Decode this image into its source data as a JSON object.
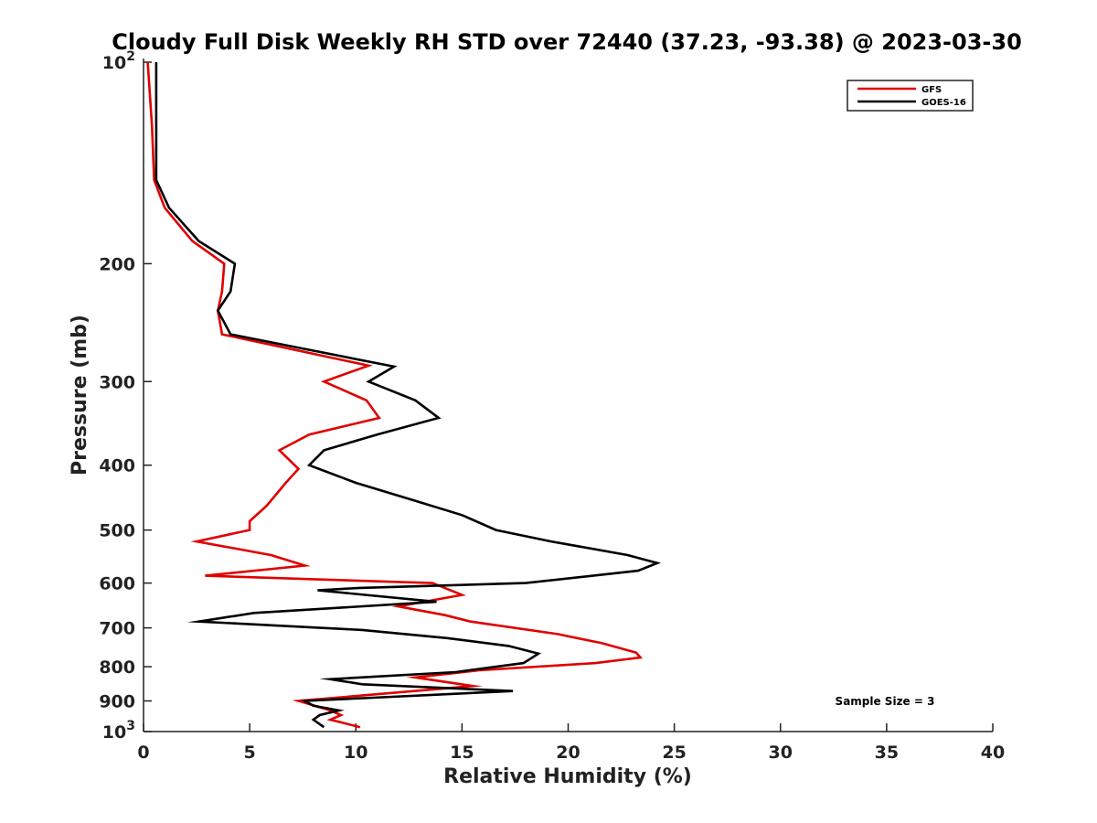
{
  "chart_data": {
    "type": "line",
    "title": "Cloudy Full Disk Weekly RH STD over 72440 (37.23, -93.38) @ 2023-03-30",
    "xlabel": "Relative Humidity (%)",
    "ylabel": "Pressure (mb)",
    "xlim": [
      0,
      40
    ],
    "ylim": [
      100,
      1000
    ],
    "y_scale": "log",
    "y_reversed": true,
    "grid": false,
    "legend_position": "top-right",
    "x_ticks": [
      0,
      5,
      10,
      15,
      20,
      25,
      30,
      35,
      40
    ],
    "x_tick_labels": [
      "0",
      "5",
      "10",
      "15",
      "20",
      "25",
      "30",
      "35",
      "40"
    ],
    "y_ticks": [
      100,
      200,
      300,
      400,
      500,
      600,
      700,
      800,
      900,
      1000
    ],
    "y_tick_labels": [
      {
        "base": "10",
        "exp": "2"
      },
      {
        "base": "200",
        "exp": ""
      },
      {
        "base": "300",
        "exp": ""
      },
      {
        "base": "400",
        "exp": ""
      },
      {
        "base": "500",
        "exp": ""
      },
      {
        "base": "600",
        "exp": ""
      },
      {
        "base": "700",
        "exp": ""
      },
      {
        "base": "800",
        "exp": ""
      },
      {
        "base": "900",
        "exp": ""
      },
      {
        "base": "10",
        "exp": "3"
      }
    ],
    "annotation": "Sample Size = 3",
    "series": [
      {
        "name": "GFS",
        "color": "#e00000",
        "points": [
          [
            0.2,
            100
          ],
          [
            0.4,
            125
          ],
          [
            0.5,
            150
          ],
          [
            1.0,
            165
          ],
          [
            2.3,
            185
          ],
          [
            3.8,
            200
          ],
          [
            3.7,
            220
          ],
          [
            3.5,
            235
          ],
          [
            3.7,
            255
          ],
          [
            10.6,
            284
          ],
          [
            8.5,
            300
          ],
          [
            10.5,
            320
          ],
          [
            11.1,
            340
          ],
          [
            7.8,
            360
          ],
          [
            6.4,
            380
          ],
          [
            7.3,
            405
          ],
          [
            6.7,
            425
          ],
          [
            5.8,
            460
          ],
          [
            5.0,
            485
          ],
          [
            5.0,
            500
          ],
          [
            2.5,
            520
          ],
          [
            6.0,
            545
          ],
          [
            7.6,
            565
          ],
          [
            2.9,
            585
          ],
          [
            13.6,
            600
          ],
          [
            15.0,
            625
          ],
          [
            12.0,
            650
          ],
          [
            14.2,
            670
          ],
          [
            15.4,
            685
          ],
          [
            19.5,
            715
          ],
          [
            21.6,
            738
          ],
          [
            23.2,
            762
          ],
          [
            23.4,
            775
          ],
          [
            21.3,
            790
          ],
          [
            15.8,
            810
          ],
          [
            12.8,
            830
          ],
          [
            15.5,
            855
          ],
          [
            7.3,
            900
          ],
          [
            8.8,
            930
          ],
          [
            9.3,
            945
          ],
          [
            8.8,
            960
          ],
          [
            10.2,
            985
          ]
        ]
      },
      {
        "name": "GOES-16",
        "color": "#000000",
        "points": [
          [
            0.6,
            100
          ],
          [
            0.6,
            125
          ],
          [
            0.6,
            150
          ],
          [
            1.2,
            165
          ],
          [
            2.6,
            185
          ],
          [
            4.3,
            200
          ],
          [
            4.1,
            220
          ],
          [
            3.5,
            235
          ],
          [
            4.1,
            255
          ],
          [
            11.8,
            285
          ],
          [
            10.6,
            300
          ],
          [
            12.8,
            320
          ],
          [
            13.9,
            340
          ],
          [
            11.0,
            360
          ],
          [
            8.5,
            380
          ],
          [
            7.8,
            400
          ],
          [
            10.0,
            425
          ],
          [
            12.6,
            450
          ],
          [
            15.0,
            475
          ],
          [
            16.6,
            500
          ],
          [
            19.2,
            520
          ],
          [
            22.8,
            545
          ],
          [
            24.2,
            560
          ],
          [
            23.3,
            575
          ],
          [
            18.0,
            600
          ],
          [
            10.2,
            610
          ],
          [
            8.2,
            615
          ],
          [
            13.8,
            640
          ],
          [
            5.2,
            665
          ],
          [
            2.6,
            685
          ],
          [
            10.3,
            705
          ],
          [
            14.3,
            725
          ],
          [
            17.2,
            745
          ],
          [
            18.6,
            765
          ],
          [
            17.9,
            790
          ],
          [
            14.7,
            815
          ],
          [
            8.8,
            835
          ],
          [
            10.3,
            850
          ],
          [
            17.4,
            870
          ],
          [
            7.6,
            900
          ],
          [
            8.0,
            915
          ],
          [
            9.2,
            930
          ],
          [
            8.3,
            945
          ],
          [
            8.0,
            960
          ],
          [
            8.5,
            985
          ]
        ]
      }
    ]
  }
}
